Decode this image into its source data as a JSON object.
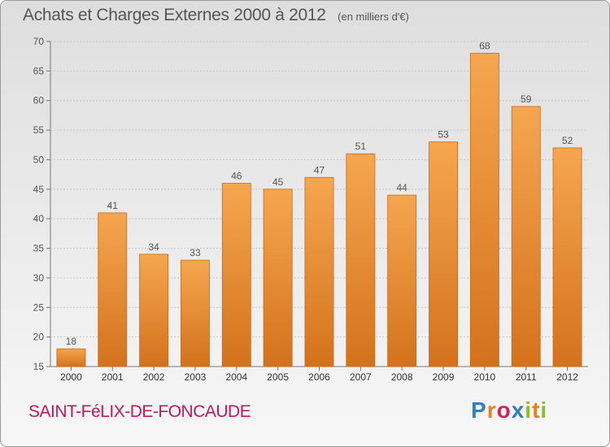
{
  "chart_data": {
    "type": "bar",
    "title": "Achats et Charges Externes 2000 à 2012",
    "subtitle": "(en milliers d'€)",
    "categories": [
      "2000",
      "2001",
      "2002",
      "2003",
      "2004",
      "2005",
      "2006",
      "2007",
      "2008",
      "2009",
      "2010",
      "2011",
      "2012"
    ],
    "values": [
      18,
      41,
      34,
      33,
      46,
      45,
      47,
      51,
      44,
      53,
      68,
      59,
      52
    ],
    "ylim": [
      15,
      70
    ],
    "yticks": [
      15,
      20,
      25,
      30,
      35,
      40,
      45,
      50,
      55,
      60,
      65,
      70
    ],
    "grid": true,
    "bar_color": "#f0922e",
    "xlabel": "",
    "ylabel": ""
  },
  "footer": {
    "commune": "SAINT-FéLIX-DE-FONCAUDE",
    "logo_letters": [
      "P",
      "r",
      "o",
      "x",
      "i",
      "t",
      "i"
    ]
  }
}
